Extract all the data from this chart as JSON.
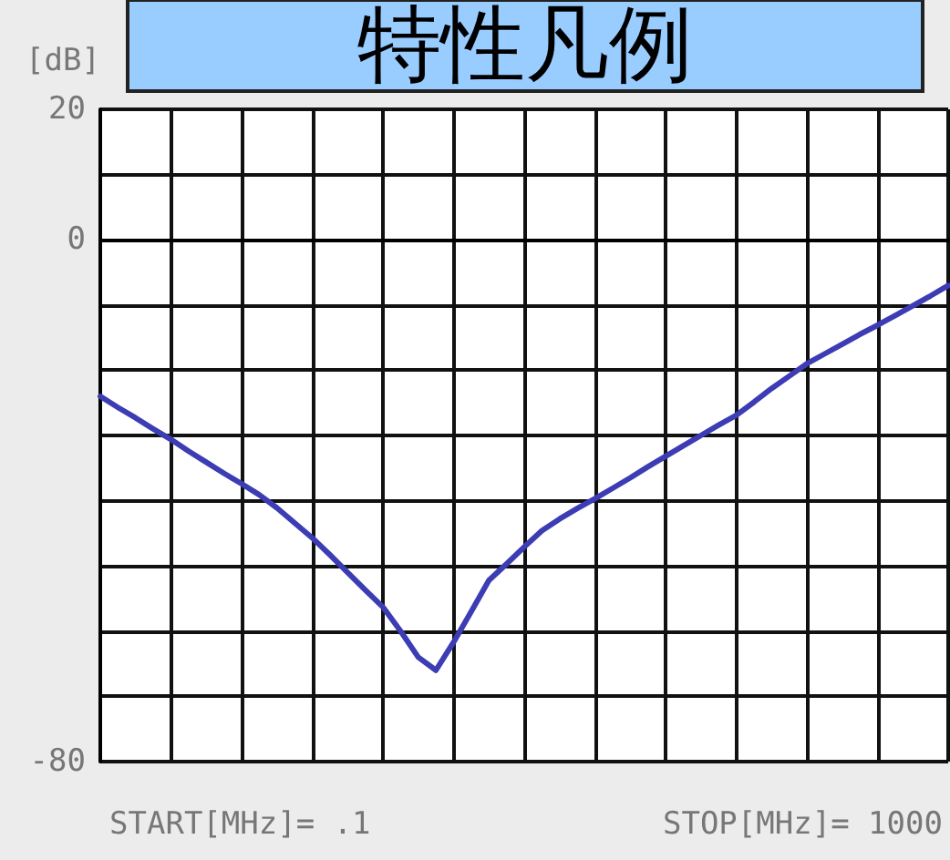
{
  "chart_data": {
    "type": "line",
    "title": "特性凡例",
    "ylabel": "[dB]",
    "annotations": [
      "START[MHz]= .1",
      "STOP[MHz]= 1000"
    ],
    "categories": [
      null,
      null,
      null,
      null,
      null,
      null,
      null,
      null,
      null,
      null,
      null,
      null,
      null,
      null,
      null,
      null,
      null,
      null,
      null,
      null,
      null,
      null,
      null,
      null,
      null,
      null,
      null,
      null,
      null,
      null,
      null,
      null,
      null,
      null,
      null,
      null,
      null,
      null,
      null,
      null,
      null,
      null,
      null,
      null,
      null,
      null,
      null,
      null,
      null
    ],
    "ylim": [
      -80,
      20
    ],
    "yticks": [
      20,
      {
        "value": 10,
        "label": null
      },
      0,
      {
        "value": -10,
        "label": null
      },
      {
        "value": -20,
        "label": null
      },
      {
        "value": -30,
        "label": null
      },
      {
        "value": -40,
        "label": null
      },
      {
        "value": -50,
        "label": null
      },
      {
        "value": -60,
        "label": null
      },
      {
        "value": -70,
        "label": null
      },
      -80
    ],
    "tick_labels": "y",
    "grid": true,
    "marker": "none",
    "line_style": "solid",
    "series": [
      {
        "color": "#3c3cb4",
        "values": [
          -24,
          -25.7,
          -27.3,
          -29,
          -30.6,
          -32.4,
          -34.1,
          -35.8,
          -37.4,
          -39.1,
          -41.1,
          -43.4,
          -45.7,
          -48.3,
          -51,
          -53.7,
          -56.3,
          -60,
          -64,
          -66,
          -61.7,
          -57,
          -52.2,
          -49.7,
          -47.1,
          -44.6,
          -42.8,
          -41.2,
          -39.7,
          -38.1,
          -36.5,
          -34.8,
          -33.2,
          -31.6,
          -30,
          -28.4,
          -26.9,
          -24.9,
          -22.8,
          -20.9,
          -19,
          -17.5,
          -16,
          -14.5,
          -13.1,
          -11.6,
          -10.1,
          -8.6,
          -7
        ]
      }
    ]
  }
}
